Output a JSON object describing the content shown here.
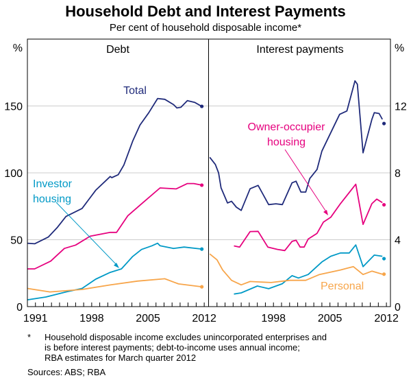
{
  "title": "Household Debt and Interest Payments",
  "subtitle": "Per cent of household disposable income*",
  "footnote_marker": "*",
  "footnote_lines": [
    "Household disposable income excludes unincorporated enterprises and",
    "is before interest payments; debt-to-income uses annual income;",
    "RBA estimates for March quarter 2012"
  ],
  "sources": "Sources: ABS; RBA",
  "colors": {
    "total": "#1f2a7a",
    "owner": "#e6007e",
    "investor": "#0099c6",
    "personal": "#f7a54a",
    "grid": "#cccccc"
  },
  "chart_data": [
    {
      "type": "line",
      "title": "Debt",
      "ylabel": "%",
      "ylim": [
        0,
        200
      ],
      "yticks": [
        0,
        50,
        100,
        150
      ],
      "xlim": [
        1990.5,
        2013
      ],
      "xticks": [
        1991,
        1998,
        2005,
        2012
      ],
      "grid": true,
      "labels": {
        "total": "Total",
        "investor": "Investor housing"
      },
      "series": [
        {
          "key": "total",
          "name": "Total",
          "points": [
            [
              1990.5,
              47.4
            ],
            [
              1991.4,
              47
            ],
            [
              1993.1,
              52
            ],
            [
              1994.2,
              59
            ],
            [
              1995.3,
              67.4
            ],
            [
              1997.3,
              73.4
            ],
            [
              1999.0,
              87
            ],
            [
              2000.8,
              97.3
            ],
            [
              2001.0,
              96.4
            ],
            [
              2001.8,
              98.6
            ],
            [
              2002.5,
              105.8
            ],
            [
              2003.6,
              123.7
            ],
            [
              2004.5,
              135.7
            ],
            [
              2005.6,
              145
            ],
            [
              2006.7,
              155.6
            ],
            [
              2007.6,
              155
            ],
            [
              2008.7,
              151
            ],
            [
              2009.1,
              148.5
            ],
            [
              2009.6,
              149
            ],
            [
              2010.4,
              154
            ],
            [
              2011.3,
              152.7
            ],
            [
              2012.2,
              149.7
            ]
          ]
        },
        {
          "key": "owner",
          "points": [
            [
              1990.5,
              28.2
            ],
            [
              1991.4,
              28.2
            ],
            [
              1993.4,
              34
            ],
            [
              1995.1,
              43.5
            ],
            [
              1996.5,
              46
            ],
            [
              1998.3,
              52.6
            ],
            [
              2000.8,
              55.5
            ],
            [
              2001.6,
              55.5
            ],
            [
              2003.0,
              68
            ],
            [
              2004.7,
              76.8
            ],
            [
              2007.0,
              88.7
            ],
            [
              2009.0,
              88
            ],
            [
              2010.4,
              92
            ],
            [
              2011.2,
              92
            ],
            [
              2012.2,
              90.8
            ]
          ]
        },
        {
          "key": "investor",
          "name": "Investor housing",
          "points": [
            [
              1990.5,
              5.1
            ],
            [
              1992.8,
              7.2
            ],
            [
              1995.3,
              11
            ],
            [
              1997.3,
              13.6
            ],
            [
              1999.0,
              20.5
            ],
            [
              2000.8,
              25.6
            ],
            [
              2002.2,
              28.2
            ],
            [
              2003.6,
              37.5
            ],
            [
              2004.7,
              42.7
            ],
            [
              2006.0,
              45.5
            ],
            [
              2006.7,
              47.4
            ],
            [
              2007.0,
              45.5
            ],
            [
              2008.7,
              43.5
            ],
            [
              2010.0,
              44.5
            ],
            [
              2012.2,
              43
            ]
          ]
        },
        {
          "key": "personal",
          "points": [
            [
              1990.5,
              13.6
            ],
            [
              1993.3,
              11
            ],
            [
              1997.3,
              12.8
            ],
            [
              2000.8,
              16.2
            ],
            [
              2004.2,
              19.1
            ],
            [
              2007.6,
              20.8
            ],
            [
              2009.3,
              17
            ],
            [
              2012.2,
              14.8
            ]
          ]
        }
      ]
    },
    {
      "type": "line",
      "title": "Interest payments",
      "ylabel": "%",
      "ylim": [
        0,
        16
      ],
      "yticks": [
        0,
        4,
        8,
        12
      ],
      "xlim": [
        1990.5,
        2013
      ],
      "xticks": [
        1998,
        2005,
        2012
      ],
      "grid": true,
      "labels": {
        "owner": "Owner-occupier housing",
        "personal": "Personal"
      },
      "series": [
        {
          "key": "total",
          "points": [
            [
              1990.6,
              8.93
            ],
            [
              1991.3,
              8.5
            ],
            [
              1991.7,
              8.0
            ],
            [
              1992.0,
              7.1
            ],
            [
              1992.8,
              6.2
            ],
            [
              1993.3,
              6.3
            ],
            [
              1993.9,
              5.95
            ],
            [
              1994.5,
              5.75
            ],
            [
              1995.6,
              7.05
            ],
            [
              1996.6,
              7.25
            ],
            [
              1997.9,
              6.1
            ],
            [
              1998.8,
              6.15
            ],
            [
              1999.6,
              6.1
            ],
            [
              2000.8,
              7.4
            ],
            [
              2001.3,
              7.5
            ],
            [
              2001.9,
              6.85
            ],
            [
              2002.5,
              6.85
            ],
            [
              2003.0,
              7.66
            ],
            [
              2003.9,
              8.2
            ],
            [
              2004.5,
              9.3
            ],
            [
              2005.3,
              10.1
            ],
            [
              2006.7,
              11.5
            ],
            [
              2007.6,
              11.7
            ],
            [
              2008.6,
              13.5
            ],
            [
              2008.9,
              13.3
            ],
            [
              2009.6,
              9.2
            ],
            [
              2010.7,
              11.2
            ],
            [
              2011.0,
              11.6
            ],
            [
              2011.6,
              11.55
            ],
            [
              2012.0,
              11.2
            ]
          ],
          "last": [
            2012.2,
            10.95
          ]
        },
        {
          "key": "owner",
          "name": "Owner-occupier housing",
          "points": [
            [
              1993.6,
              3.63
            ],
            [
              1994.3,
              3.56
            ],
            [
              1995.6,
              4.49
            ],
            [
              1996.6,
              4.5
            ],
            [
              1997.8,
              3.56
            ],
            [
              1999.0,
              3.42
            ],
            [
              1999.9,
              3.35
            ],
            [
              2000.8,
              3.9
            ],
            [
              2001.3,
              3.97
            ],
            [
              2001.8,
              3.56
            ],
            [
              2002.3,
              3.56
            ],
            [
              2002.8,
              4.04
            ],
            [
              2003.9,
              4.38
            ],
            [
              2004.7,
              5.06
            ],
            [
              2005.6,
              5.34
            ],
            [
              2006.8,
              6.16
            ],
            [
              2008.7,
              7.32
            ],
            [
              2009.6,
              4.92
            ],
            [
              2010.7,
              6.16
            ],
            [
              2011.3,
              6.43
            ],
            [
              2012.0,
              6.22
            ]
          ],
          "last": [
            2012.2,
            6.09
          ]
        },
        {
          "key": "investor",
          "points": [
            [
              1993.6,
              0.75
            ],
            [
              1994.5,
              0.82
            ],
            [
              1996.5,
              1.23
            ],
            [
              1997.9,
              1.07
            ],
            [
              1999.6,
              1.37
            ],
            [
              2000.8,
              1.85
            ],
            [
              2001.6,
              1.71
            ],
            [
              2002.8,
              1.92
            ],
            [
              2004.5,
              2.67
            ],
            [
              2005.6,
              3.01
            ],
            [
              2006.8,
              3.21
            ],
            [
              2007.9,
              3.21
            ],
            [
              2008.7,
              3.69
            ],
            [
              2009.6,
              2.39
            ],
            [
              2011.0,
              3.08
            ],
            [
              2012.0,
              3.01
            ]
          ],
          "last": [
            2012.2,
            2.87
          ]
        },
        {
          "key": "personal",
          "name": "Personal",
          "points": [
            [
              1990.6,
              3.15
            ],
            [
              1991.5,
              2.8
            ],
            [
              1992.2,
              2.19
            ],
            [
              1993.3,
              1.57
            ],
            [
              1994.5,
              1.3
            ],
            [
              1995.6,
              1.5
            ],
            [
              1998.2,
              1.44
            ],
            [
              2000.5,
              1.57
            ],
            [
              2002.5,
              1.57
            ],
            [
              2004.2,
              1.92
            ],
            [
              2006.8,
              2.19
            ],
            [
              2008.4,
              2.39
            ],
            [
              2009.6,
              1.92
            ],
            [
              2010.7,
              2.12
            ],
            [
              2012.0,
              1.94
            ]
          ],
          "last": [
            2012.2,
            1.94
          ]
        }
      ]
    }
  ]
}
